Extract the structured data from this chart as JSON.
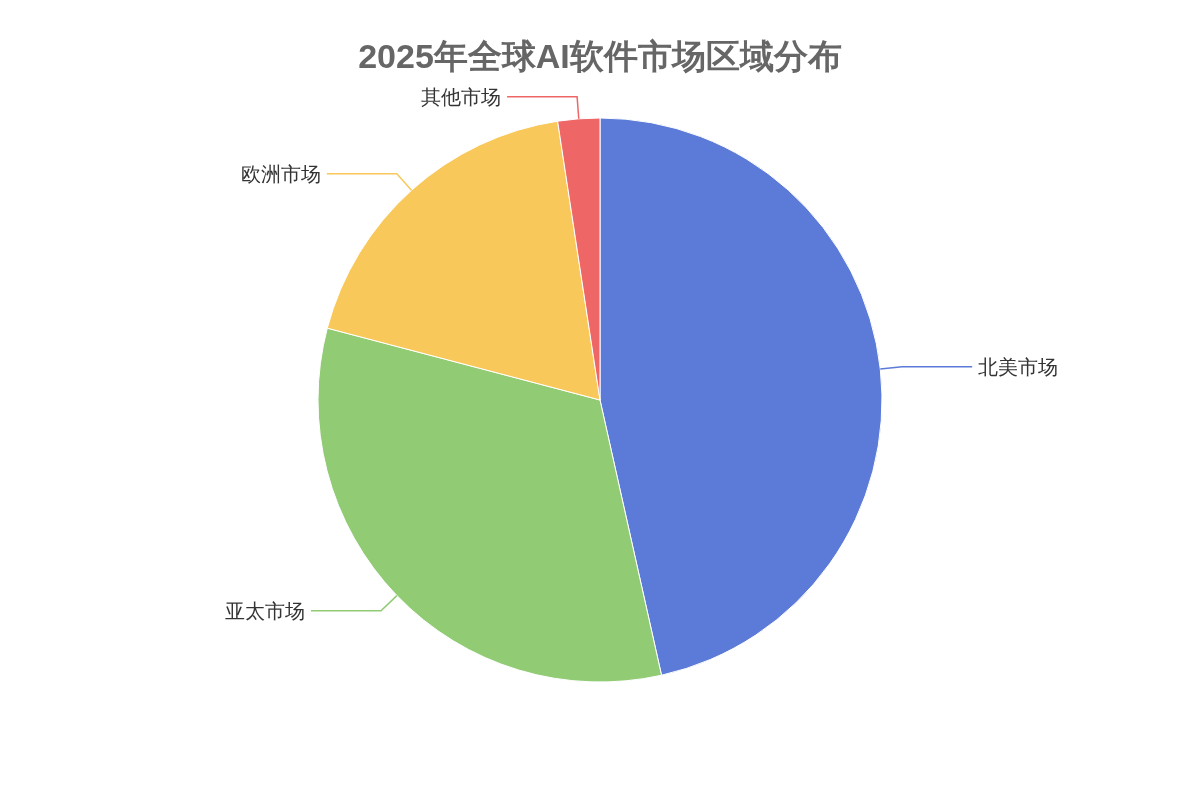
{
  "chart_data": {
    "type": "pie",
    "title": "2025年全球AI软件市场区域分布",
    "categories": [
      "北美市场",
      "亚太市场",
      "欧洲市场",
      "其他市场"
    ],
    "values": [
      46.5,
      32.6,
      18.5,
      2.4
    ],
    "colors": [
      "#5c7bd9",
      "#91cb74",
      "#f9c85a",
      "#ee6666"
    ]
  }
}
